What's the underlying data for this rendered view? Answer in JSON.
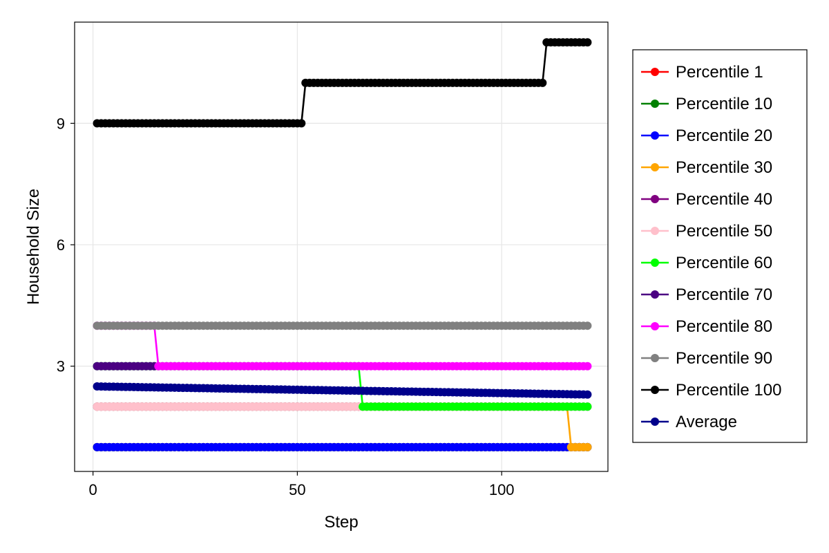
{
  "chart_data": {
    "type": "line",
    "xlabel": "Step",
    "ylabel": "Household Size",
    "xlim": [
      -4.5,
      126
    ],
    "ylim": [
      0.4,
      11.5
    ],
    "x_ticks": [
      0,
      50,
      100
    ],
    "y_ticks": [
      3,
      6,
      9
    ],
    "x_tick_labels": [
      "0",
      "50",
      "100"
    ],
    "y_tick_labels": [
      "3",
      "6",
      "9"
    ],
    "grid": true,
    "legend_position": "right",
    "x_range": [
      1,
      121
    ],
    "series": [
      {
        "name": "Percentile 1",
        "color": "#ff0000",
        "segments": [
          {
            "x_start": 1,
            "x_end": 121,
            "value": 1
          }
        ]
      },
      {
        "name": "Percentile 10",
        "color": "#008000",
        "segments": [
          {
            "x_start": 1,
            "x_end": 121,
            "value": 1
          }
        ]
      },
      {
        "name": "Percentile 20",
        "color": "#0000ff",
        "segments": [
          {
            "x_start": 1,
            "x_end": 121,
            "value": 1
          }
        ]
      },
      {
        "name": "Percentile 30",
        "color": "#ffa500",
        "segments": [
          {
            "x_start": 1,
            "x_end": 116,
            "value": 2
          },
          {
            "x_start": 117,
            "x_end": 121,
            "value": 1
          }
        ]
      },
      {
        "name": "Percentile 40",
        "color": "#800080",
        "segments": [
          {
            "x_start": 1,
            "x_end": 65,
            "value": 2
          },
          {
            "x_start": 66,
            "x_end": 121,
            "value": 2
          }
        ]
      },
      {
        "name": "Percentile 50",
        "color": "#ffc0cb",
        "segments": [
          {
            "x_start": 1,
            "x_end": 65,
            "value": 2
          }
        ]
      },
      {
        "name": "Percentile 60",
        "color": "#00ff00",
        "segments": [
          {
            "x_start": 1,
            "x_end": 65,
            "value": 3
          },
          {
            "x_start": 66,
            "x_end": 121,
            "value": 2
          }
        ]
      },
      {
        "name": "Percentile 70",
        "color": "#4b0082",
        "segments": [
          {
            "x_start": 1,
            "x_end": 15,
            "value": 3
          }
        ]
      },
      {
        "name": "Percentile 80",
        "color": "#ff00ff",
        "segments": [
          {
            "x_start": 1,
            "x_end": 15,
            "value": 4
          },
          {
            "x_start": 16,
            "x_end": 121,
            "value": 3
          }
        ]
      },
      {
        "name": "Percentile 90",
        "color": "#808080",
        "segments": [
          {
            "x_start": 1,
            "x_end": 121,
            "value": 4
          }
        ]
      },
      {
        "name": "Percentile 100",
        "color": "#000000",
        "segments": [
          {
            "x_start": 1,
            "x_end": 51,
            "value": 9
          },
          {
            "x_start": 52,
            "x_end": 110,
            "value": 10
          },
          {
            "x_start": 111,
            "x_end": 121,
            "value": 11
          }
        ]
      },
      {
        "name": "Average",
        "color": "#00008b",
        "linear": {
          "x_start": 1,
          "y_start": 2.5,
          "x_end": 121,
          "y_end": 2.3
        }
      }
    ]
  }
}
